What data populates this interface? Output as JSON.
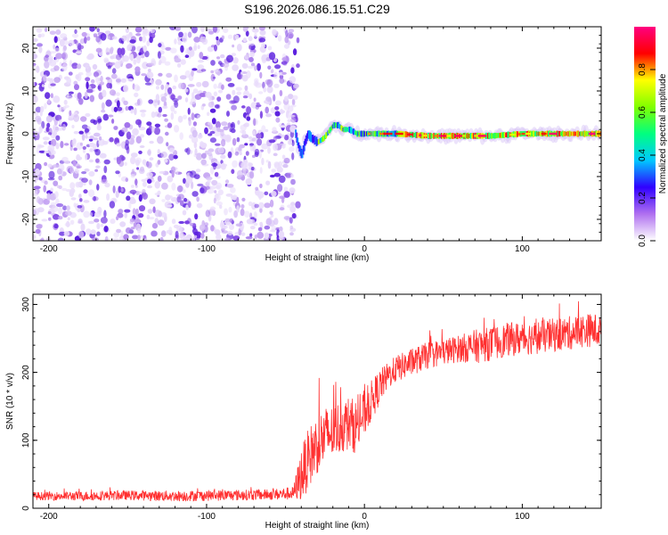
{
  "figure_title": "S196.2026.086.15.51.C29",
  "chart_data": [
    {
      "type": "heatmap",
      "title": "S196.2026.086.15.51.C29",
      "xlabel": "Height of straight line (km)",
      "ylabel": "Frequency (Hz)",
      "xlim": [
        -210,
        150
      ],
      "ylim": [
        -25,
        25
      ],
      "xticks": [
        "-200",
        "-100",
        "0",
        "100"
      ],
      "yticks": [
        "20",
        "10",
        "0",
        "-10",
        "-20"
      ],
      "grid": false,
      "colorbar": {
        "label": "Normalized spectral amplitude",
        "range": [
          0.0,
          1.0
        ],
        "ticks": [
          "0.0",
          "0.2",
          "0.4",
          "0.6",
          "0.8"
        ],
        "colors": [
          "#ffffff",
          "#b070f0",
          "#3000ff",
          "#00c8ff",
          "#00ff80",
          "#80ff00",
          "#ffff00",
          "#ff0000",
          "#ff0080"
        ]
      },
      "regions": [
        {
          "name": "noise",
          "x_range": [
            -210,
            -42
          ],
          "freq_range": [
            -25,
            25
          ],
          "amplitude_range": [
            0.02,
            0.15
          ]
        },
        {
          "name": "transition",
          "x_range": [
            -42,
            20
          ],
          "freq_center": [
            -2,
            2
          ],
          "amplitude_range": [
            0.2,
            0.6
          ]
        },
        {
          "name": "carrier",
          "x_range": [
            20,
            150
          ],
          "freq_center": 0,
          "freq_width": 1.5,
          "amplitude_range": [
            0.5,
            1.0
          ]
        }
      ],
      "carrier_track": {
        "x": [
          -44,
          -42,
          -40,
          -38,
          -36,
          -34,
          -30,
          -26,
          -22,
          -20,
          -17,
          -14,
          -10,
          -5,
          0,
          10,
          20,
          40,
          60,
          80,
          100,
          120,
          150
        ],
        "freq": [
          0,
          -3,
          -5,
          -2,
          0,
          -1,
          -2,
          -1,
          1,
          2,
          2,
          1,
          1,
          0,
          0,
          0,
          0,
          -0.5,
          -0.5,
          -0.5,
          0,
          0,
          0
        ]
      }
    },
    {
      "type": "line",
      "xlabel": "Height of straight line (km)",
      "ylabel": "SNR (10 * v/v)",
      "xlim": [
        -210,
        150
      ],
      "ylim": [
        0,
        315
      ],
      "xticks": [
        "-200",
        "-100",
        "0",
        "100"
      ],
      "yticks": [
        "300",
        "200",
        "100",
        "0"
      ],
      "grid": false,
      "series": [
        {
          "name": "SNR",
          "color": "#ff3030",
          "x": [
            -210,
            -180,
            -150,
            -120,
            -90,
            -60,
            -45,
            -40,
            -35,
            -30,
            -25,
            -20,
            -15,
            -10,
            -5,
            0,
            5,
            10,
            15,
            20,
            30,
            40,
            50,
            60,
            70,
            80,
            90,
            100,
            110,
            120,
            130,
            140,
            150
          ],
          "values": [
            18,
            18,
            19,
            18,
            19,
            20,
            22,
            50,
            75,
            95,
            105,
            112,
            120,
            125,
            120,
            140,
            160,
            180,
            195,
            205,
            215,
            225,
            230,
            235,
            238,
            242,
            248,
            250,
            252,
            255,
            258,
            262,
            262
          ],
          "noise": [
            6,
            7,
            7,
            8,
            8,
            8,
            10,
            40,
            45,
            45,
            45,
            40,
            40,
            40,
            40,
            35,
            30,
            25,
            20,
            20,
            20,
            20,
            20,
            20,
            25,
            25,
            25,
            25,
            25,
            25,
            25,
            25,
            25
          ]
        }
      ]
    }
  ]
}
